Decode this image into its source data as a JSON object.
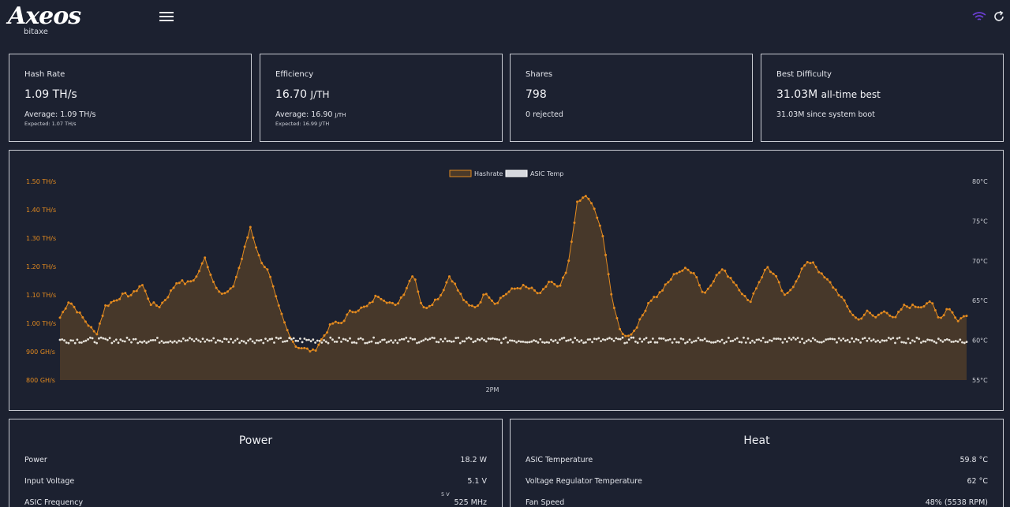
{
  "app": {
    "logo_text": "Axeos",
    "logo_sub": "bitaxe"
  },
  "icons": {
    "menu": "menu-icon",
    "wifi": "wifi-icon",
    "refresh": "refresh-icon",
    "wifi_color": "#6b3fd4"
  },
  "cards": {
    "hashrate": {
      "title": "Hash Rate",
      "value": "1.09 TH/s",
      "average": "Average: 1.09 TH/s",
      "expected": "Expected: 1.07 TH/s"
    },
    "efficiency": {
      "title": "Efficiency",
      "value": "16.70",
      "unit": "J/TH",
      "average": "Average: 16.90",
      "average_unit": "J/TH",
      "expected": "Expected: 16.99 J/TH"
    },
    "shares": {
      "title": "Shares",
      "value": "798",
      "rejected": "0 rejected"
    },
    "best_difficulty": {
      "title": "Best Difficulty",
      "value": "31.03M",
      "value_suffix": "all-time best",
      "since_boot": "31.03M since system boot"
    }
  },
  "chart_data": {
    "type": "line",
    "legend": [
      "Hashrate",
      "ASIC Temp"
    ],
    "colors": {
      "hashrate": "#e38a1f",
      "hashrate_fill": "#4a3a2a",
      "temp": "#e6e2da"
    },
    "x_tick_labels": [
      "2PM"
    ],
    "y_left": {
      "unit": "GH/s",
      "ylim": [
        800,
        1500
      ],
      "tick_labels": [
        "1.50 TH/s",
        "1.40 TH/s",
        "1.30 TH/s",
        "1.20 TH/s",
        "1.10 TH/s",
        "1.00 TH/s",
        "900 GH/s",
        "800 GH/s"
      ]
    },
    "y_right": {
      "unit": "°C",
      "ylim": [
        55,
        80
      ],
      "tick_labels": [
        "80°C",
        "75°C",
        "70°C",
        "65°C",
        "60°C",
        "55°C"
      ]
    },
    "hashrate_anchors": [
      [
        0,
        1020
      ],
      [
        0.01,
        1080
      ],
      [
        0.02,
        1040
      ],
      [
        0.03,
        1000
      ],
      [
        0.04,
        960
      ],
      [
        0.05,
        1060
      ],
      [
        0.06,
        1080
      ],
      [
        0.07,
        1100
      ],
      [
        0.08,
        1100
      ],
      [
        0.09,
        1140
      ],
      [
        0.1,
        1070
      ],
      [
        0.11,
        1060
      ],
      [
        0.12,
        1100
      ],
      [
        0.13,
        1150
      ],
      [
        0.14,
        1140
      ],
      [
        0.15,
        1160
      ],
      [
        0.16,
        1230
      ],
      [
        0.17,
        1140
      ],
      [
        0.18,
        1100
      ],
      [
        0.19,
        1120
      ],
      [
        0.2,
        1220
      ],
      [
        0.21,
        1340
      ],
      [
        0.22,
        1230
      ],
      [
        0.23,
        1180
      ],
      [
        0.24,
        1070
      ],
      [
        0.25,
        980
      ],
      [
        0.26,
        920
      ],
      [
        0.27,
        910
      ],
      [
        0.28,
        900
      ],
      [
        0.29,
        950
      ],
      [
        0.3,
        1000
      ],
      [
        0.31,
        1000
      ],
      [
        0.32,
        1040
      ],
      [
        0.33,
        1050
      ],
      [
        0.34,
        1060
      ],
      [
        0.35,
        1100
      ],
      [
        0.36,
        1080
      ],
      [
        0.37,
        1060
      ],
      [
        0.38,
        1110
      ],
      [
        0.39,
        1180
      ],
      [
        0.4,
        1050
      ],
      [
        0.41,
        1070
      ],
      [
        0.42,
        1100
      ],
      [
        0.43,
        1170
      ],
      [
        0.44,
        1110
      ],
      [
        0.45,
        1060
      ],
      [
        0.46,
        1060
      ],
      [
        0.47,
        1110
      ],
      [
        0.48,
        1070
      ],
      [
        0.49,
        1100
      ],
      [
        0.5,
        1120
      ],
      [
        0.51,
        1130
      ],
      [
        0.52,
        1120
      ],
      [
        0.53,
        1100
      ],
      [
        0.54,
        1150
      ],
      [
        0.55,
        1120
      ],
      [
        0.56,
        1190
      ],
      [
        0.57,
        1420
      ],
      [
        0.58,
        1450
      ],
      [
        0.59,
        1400
      ],
      [
        0.6,
        1290
      ],
      [
        0.61,
        1060
      ],
      [
        0.62,
        960
      ],
      [
        0.63,
        960
      ],
      [
        0.64,
        1010
      ],
      [
        0.65,
        1080
      ],
      [
        0.66,
        1100
      ],
      [
        0.67,
        1140
      ],
      [
        0.68,
        1180
      ],
      [
        0.69,
        1190
      ],
      [
        0.7,
        1180
      ],
      [
        0.71,
        1100
      ],
      [
        0.72,
        1150
      ],
      [
        0.73,
        1190
      ],
      [
        0.74,
        1160
      ],
      [
        0.75,
        1120
      ],
      [
        0.76,
        1070
      ],
      [
        0.77,
        1140
      ],
      [
        0.78,
        1200
      ],
      [
        0.79,
        1160
      ],
      [
        0.8,
        1090
      ],
      [
        0.81,
        1140
      ],
      [
        0.82,
        1200
      ],
      [
        0.83,
        1220
      ],
      [
        0.84,
        1170
      ],
      [
        0.85,
        1140
      ],
      [
        0.86,
        1100
      ],
      [
        0.87,
        1050
      ],
      [
        0.88,
        1010
      ],
      [
        0.89,
        1040
      ],
      [
        0.9,
        1020
      ],
      [
        0.91,
        1050
      ],
      [
        0.92,
        1010
      ],
      [
        0.93,
        1060
      ],
      [
        0.94,
        1060
      ],
      [
        0.95,
        1060
      ],
      [
        0.96,
        1080
      ],
      [
        0.97,
        1010
      ],
      [
        0.98,
        1060
      ],
      [
        0.99,
        1010
      ],
      [
        1.0,
        1030
      ]
    ],
    "temp_mean": 60,
    "temp_jitter": 0.35
  },
  "power": {
    "title": "Power",
    "rows": [
      {
        "label": "Power",
        "value": "18.2 W"
      },
      {
        "label": "Input Voltage",
        "value": "5.1 V"
      },
      {
        "label": "ASIC Frequency",
        "value": "525 MHz",
        "note": "5 V"
      }
    ]
  },
  "heat": {
    "title": "Heat",
    "rows": [
      {
        "label": "ASIC Temperature",
        "value": "59.8 °C"
      },
      {
        "label": "Voltage Regulator Temperature",
        "value": "62 °C"
      },
      {
        "label": "Fan Speed",
        "value": "48% (5538 RPM)"
      }
    ]
  }
}
